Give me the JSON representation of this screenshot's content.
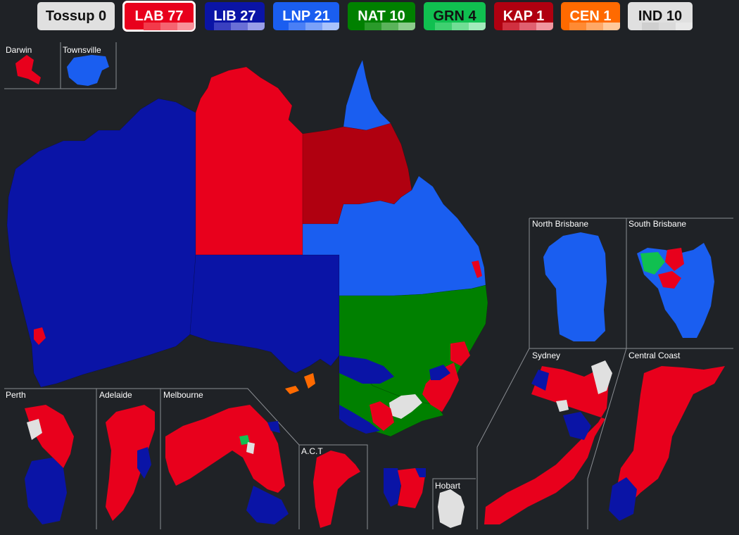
{
  "colors": {
    "background": "#1f2226",
    "frame": "#8a8d92",
    "label": "#ffffff"
  },
  "parties": [
    {
      "id": "tossup",
      "label": "Tossup 0",
      "color": "#e0e0e0",
      "text": "#111111",
      "selected": false,
      "shades": []
    },
    {
      "id": "lab",
      "label": "LAB 77",
      "color": "#e8001c",
      "text": "#ffffff",
      "selected": true,
      "shades": [
        "#f23a4a",
        "#f56470",
        "#f89099"
      ]
    },
    {
      "id": "lib",
      "label": "LIB 27",
      "color": "#0a14a6",
      "text": "#ffffff",
      "selected": false,
      "shades": [
        "#3a40c0",
        "#6a6fd6",
        "#9a9ee8"
      ]
    },
    {
      "id": "lnp",
      "label": "LNP 21",
      "color": "#1a5ef0",
      "text": "#ffffff",
      "selected": false,
      "shades": [
        "#4a7ff5",
        "#7aa1f8",
        "#a8c2fb"
      ]
    },
    {
      "id": "nat",
      "label": "NAT 10",
      "color": "#008000",
      "text": "#ffffff",
      "selected": false,
      "shades": [
        "#2a9a2a",
        "#5ab35a",
        "#8ccc8c"
      ]
    },
    {
      "id": "grn",
      "label": "GRN 4",
      "color": "#10c050",
      "text": "#111111",
      "selected": false,
      "shades": [
        "#3fd070",
        "#70de95",
        "#a2ebbb"
      ]
    },
    {
      "id": "kap",
      "label": "KAP 1",
      "color": "#b00010",
      "text": "#ffffff",
      "selected": false,
      "shades": [
        "#d03040",
        "#e06070",
        "#f096a0"
      ]
    },
    {
      "id": "cen",
      "label": "CEN 1",
      "color": "#ff6a00",
      "text": "#ffffff",
      "selected": false,
      "shades": [
        "#ff8a33",
        "#ffa866",
        "#ffc899"
      ]
    },
    {
      "id": "ind",
      "label": "IND 10",
      "color": "#e0e0e0",
      "text": "#111111",
      "selected": false,
      "shades": [
        "#cfcfcf",
        "#dadada",
        "#e8e8e8"
      ]
    }
  ],
  "regions": [
    {
      "name": "Western Australia",
      "party": "lib"
    },
    {
      "name": "Northern Territory",
      "party": "lab"
    },
    {
      "name": "South Australia",
      "party": "lib"
    },
    {
      "name": "Cape York",
      "party": "lnp"
    },
    {
      "name": "Kennedy",
      "party": "kap"
    },
    {
      "name": "Queensland",
      "party": "lnp"
    },
    {
      "name": "New South Wales",
      "party": "nat"
    },
    {
      "name": "Victoria",
      "party": "nat"
    }
  ],
  "insets": {
    "darwin": "Darwin",
    "townsville": "Townsville",
    "north_brisbane": "North Brisbane",
    "south_brisbane": "South Brisbane",
    "sydney": "Sydney",
    "central_coast": "Central Coast",
    "perth": "Perth",
    "adelaide": "Adelaide",
    "melbourne": "Melbourne",
    "act": "A.C.T",
    "hobart": "Hobart"
  }
}
